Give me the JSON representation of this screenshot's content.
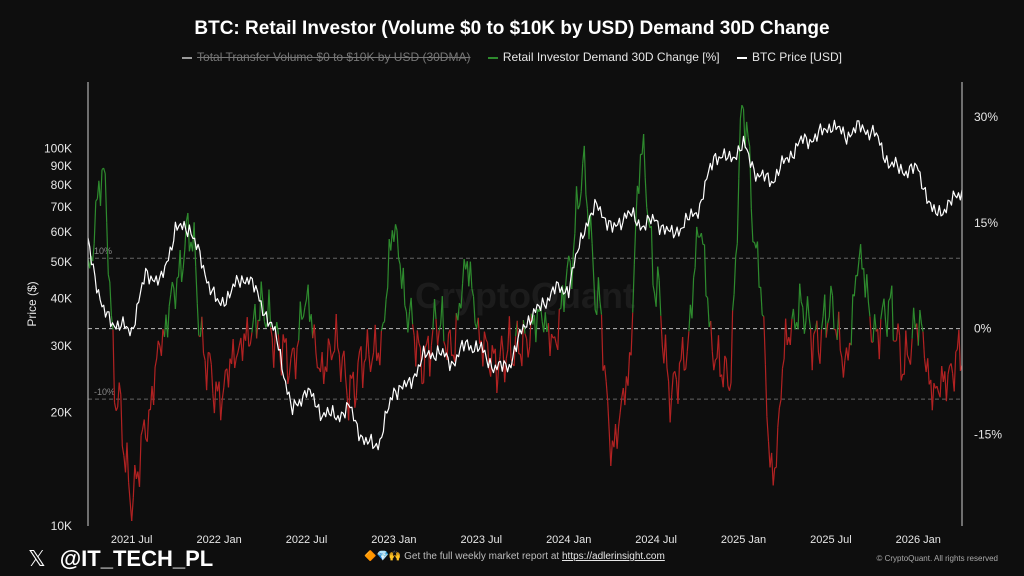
{
  "chart_data": {
    "type": "line",
    "title": "BTC: Retail Investor (Volume $0 to $10K by USD) Demand 30D Change",
    "legend": [
      {
        "name": "Total Transfer Volume  $0 to $10K by USD (30DMA)",
        "color": "#9a9a9a",
        "disabled": true
      },
      {
        "name": "Retail Investor Demand 30D Change [%]",
        "color": "#2e8b2e"
      },
      {
        "name": "BTC Price [USD]",
        "color": "#ffffff"
      }
    ],
    "legend_position": "top-center",
    "x_ticks": [
      "2021 Jul",
      "2022 Jan",
      "2022 Jul",
      "2023 Jan",
      "2023 Jul",
      "2024 Jan",
      "2024 Jul",
      "2025 Jan",
      "2025 Jul",
      "2026 Jan"
    ],
    "x_range": [
      "2021-04",
      "2026-04"
    ],
    "left_axis": {
      "label": "Price ($)",
      "scale": "log",
      "range": [
        10000,
        150000
      ],
      "ticks": [
        {
          "v": 10000,
          "t": "10K"
        },
        {
          "v": 20000,
          "t": "20K"
        },
        {
          "v": 30000,
          "t": "30K"
        },
        {
          "v": 40000,
          "t": "40K"
        },
        {
          "v": 50000,
          "t": "50K"
        },
        {
          "v": 60000,
          "t": "60K"
        },
        {
          "v": 70000,
          "t": "70K"
        },
        {
          "v": 80000,
          "t": "80K"
        },
        {
          "v": 90000,
          "t": "90K"
        },
        {
          "v": 100000,
          "t": "100K"
        }
      ]
    },
    "right_axis": {
      "label": "",
      "scale": "linear",
      "range": [
        -28,
        35
      ],
      "ticks": [
        {
          "v": 30,
          "t": "30%"
        },
        {
          "v": 15,
          "t": "15%"
        },
        {
          "v": 0,
          "t": "0%"
        },
        {
          "v": -15,
          "t": "-15%"
        }
      ]
    },
    "reference_lines": [
      {
        "v": 10,
        "t": "10%"
      },
      {
        "v": 0,
        "t": ""
      },
      {
        "v": -10,
        "t": "-10%"
      }
    ],
    "watermark": "CryptoQuant",
    "demand_colors": {
      "positive": "#2e8b2e",
      "negative": "#b22222"
    },
    "btc_price": [
      [
        "2021-04",
        57000
      ],
      [
        "2021-05",
        37000
      ],
      [
        "2021-06",
        34000
      ],
      [
        "2021-07",
        33000
      ],
      [
        "2021-08",
        47000
      ],
      [
        "2021-09",
        44000
      ],
      [
        "2021-10",
        61000
      ],
      [
        "2021-11",
        62000
      ],
      [
        "2021-12",
        47000
      ],
      [
        "2022-01",
        38000
      ],
      [
        "2022-02",
        43000
      ],
      [
        "2022-03",
        46000
      ],
      [
        "2022-04",
        38000
      ],
      [
        "2022-05",
        31000
      ],
      [
        "2022-06",
        20000
      ],
      [
        "2022-07",
        23000
      ],
      [
        "2022-08",
        20000
      ],
      [
        "2022-09",
        19500
      ],
      [
        "2022-10",
        20500
      ],
      [
        "2022-11",
        16500
      ],
      [
        "2022-12",
        16600
      ],
      [
        "2023-01",
        23000
      ],
      [
        "2023-02",
        23500
      ],
      [
        "2023-03",
        28000
      ],
      [
        "2023-04",
        29000
      ],
      [
        "2023-05",
        27000
      ],
      [
        "2023-06",
        30500
      ],
      [
        "2023-07",
        29200
      ],
      [
        "2023-08",
        26000
      ],
      [
        "2023-09",
        27000
      ],
      [
        "2023-10",
        34500
      ],
      [
        "2023-11",
        37700
      ],
      [
        "2023-12",
        42300
      ],
      [
        "2024-01",
        42500
      ],
      [
        "2024-02",
        61000
      ],
      [
        "2024-03",
        71000
      ],
      [
        "2024-04",
        60500
      ],
      [
        "2024-05",
        67500
      ],
      [
        "2024-06",
        62700
      ],
      [
        "2024-07",
        64600
      ],
      [
        "2024-08",
        59000
      ],
      [
        "2024-09",
        63300
      ],
      [
        "2024-10",
        70200
      ],
      [
        "2024-11",
        96400
      ],
      [
        "2024-12",
        93400
      ],
      [
        "2025-01",
        102000
      ],
      [
        "2025-02",
        84300
      ],
      [
        "2025-03",
        82500
      ],
      [
        "2025-04",
        94200
      ],
      [
        "2025-05",
        104600
      ],
      [
        "2025-06",
        107100
      ],
      [
        "2025-07",
        115700
      ],
      [
        "2025-08",
        108200
      ],
      [
        "2025-09",
        114000
      ],
      [
        "2025-10",
        109500
      ],
      [
        "2025-11",
        91000
      ],
      [
        "2025-12",
        87500
      ],
      [
        "2026-01",
        88000
      ],
      [
        "2026-02",
        67000
      ],
      [
        "2026-03",
        70000
      ],
      [
        "2026-04",
        78000
      ]
    ],
    "demand_change_pct": [
      [
        "2021-04",
        8
      ],
      [
        "2021-05",
        22
      ],
      [
        "2021-06",
        -10
      ],
      [
        "2021-07",
        -24
      ],
      [
        "2021-08",
        -14
      ],
      [
        "2021-09",
        -2
      ],
      [
        "2021-10",
        6
      ],
      [
        "2021-11",
        14
      ],
      [
        "2021-12",
        -4
      ],
      [
        "2022-01",
        -10
      ],
      [
        "2022-02",
        -4
      ],
      [
        "2022-03",
        -1
      ],
      [
        "2022-04",
        3
      ],
      [
        "2022-05",
        -2
      ],
      [
        "2022-06",
        -5
      ],
      [
        "2022-07",
        4
      ],
      [
        "2022-08",
        -6
      ],
      [
        "2022-09",
        -2
      ],
      [
        "2022-10",
        -9
      ],
      [
        "2022-11",
        -4
      ],
      [
        "2022-12",
        -3
      ],
      [
        "2023-01",
        14
      ],
      [
        "2023-02",
        2
      ],
      [
        "2023-03",
        -5
      ],
      [
        "2023-04",
        1
      ],
      [
        "2023-05",
        -3
      ],
      [
        "2023-06",
        9
      ],
      [
        "2023-07",
        -2
      ],
      [
        "2023-08",
        -5
      ],
      [
        "2023-09",
        -3
      ],
      [
        "2023-10",
        -2
      ],
      [
        "2023-11",
        2
      ],
      [
        "2023-12",
        -2
      ],
      [
        "2024-01",
        8
      ],
      [
        "2024-02",
        22
      ],
      [
        "2024-03",
        4
      ],
      [
        "2024-04",
        -17
      ],
      [
        "2024-05",
        -8
      ],
      [
        "2024-06",
        25
      ],
      [
        "2024-07",
        6
      ],
      [
        "2024-08",
        -9
      ],
      [
        "2024-09",
        -4
      ],
      [
        "2024-10",
        14
      ],
      [
        "2024-11",
        -4
      ],
      [
        "2024-12",
        -7
      ],
      [
        "2025-01",
        31
      ],
      [
        "2025-02",
        9
      ],
      [
        "2025-03",
        -21
      ],
      [
        "2025-04",
        -1
      ],
      [
        "2025-05",
        3
      ],
      [
        "2025-06",
        -2
      ],
      [
        "2025-07",
        3
      ],
      [
        "2025-08",
        -5
      ],
      [
        "2025-09",
        10
      ],
      [
        "2025-10",
        -1
      ],
      [
        "2025-11",
        3
      ],
      [
        "2025-12",
        -5
      ],
      [
        "2026-01",
        1
      ],
      [
        "2026-02",
        -9
      ],
      [
        "2026-03",
        -7
      ],
      [
        "2026-04",
        -3
      ]
    ]
  },
  "branding": {
    "x_glyph": "𝕏",
    "handle": "@IT_TECH_PL"
  },
  "footer": {
    "emoji": "🔶💎🙌",
    "text": "Get the full weekly market report at",
    "link": "https://adlerinsight.com"
  },
  "copyright": "© CryptoQuant. All rights reserved"
}
